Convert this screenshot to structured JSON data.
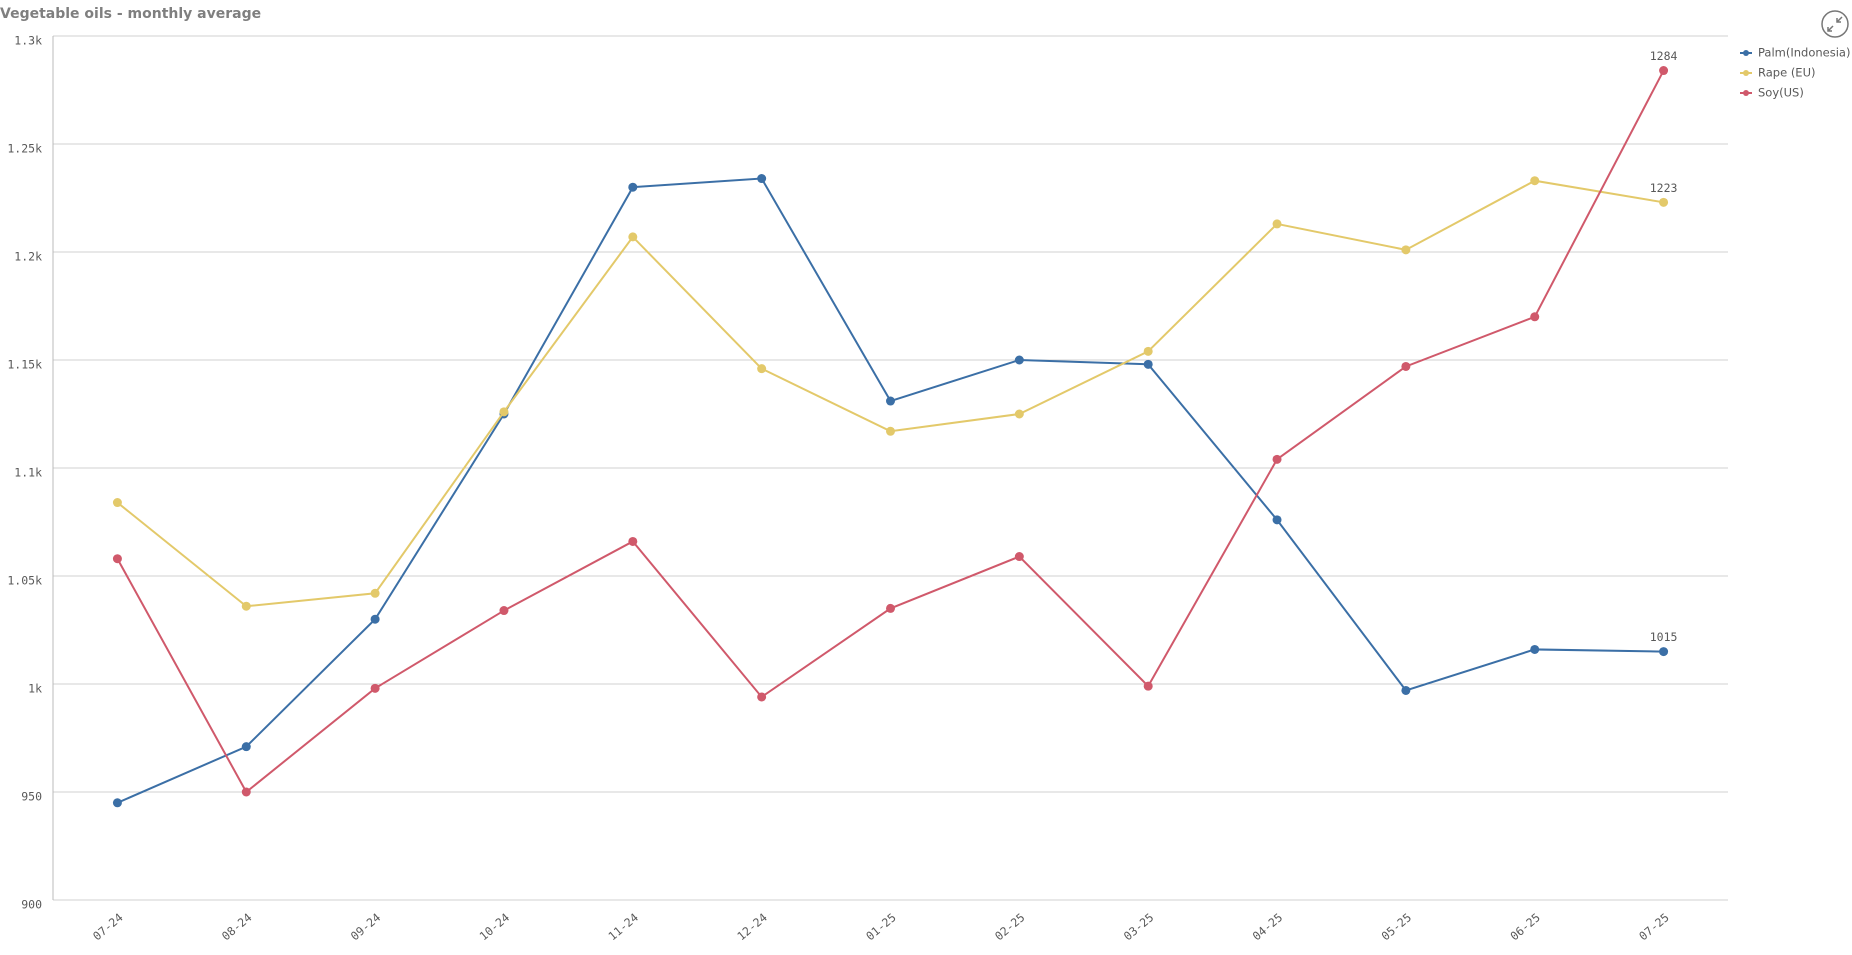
{
  "chart_data": {
    "type": "line",
    "title": "Vegetable oils - monthly average",
    "categories": [
      "07-24",
      "08-24",
      "09-24",
      "10-24",
      "11-24",
      "12-24",
      "01-25",
      "02-25",
      "03-25",
      "04-25",
      "05-25",
      "06-25",
      "07-25"
    ],
    "series": [
      {
        "name": "Palm(Indonesia)",
        "color": "#3b6fa6",
        "values": [
          945,
          971,
          1030,
          1125,
          1230,
          1234,
          1131,
          1150,
          1148,
          1076,
          997,
          1016,
          1015
        ]
      },
      {
        "name": "Rape (EU)",
        "color": "#e3c96a",
        "values": [
          1084,
          1036,
          1042,
          1126,
          1207,
          1146,
          1117,
          1125,
          1154,
          1213,
          1201,
          1233,
          1223
        ]
      },
      {
        "name": "Soy(US)",
        "color": "#d0596b",
        "values": [
          1058,
          950,
          998,
          1034,
          1066,
          994,
          1035,
          1059,
          999,
          1104,
          1147,
          1170,
          1284
        ]
      }
    ],
    "ylim": [
      900,
      1300
    ],
    "yticks": [
      900,
      950,
      {
        "value": 1000,
        "label": "1k"
      },
      {
        "value": 1050,
        "label": "1.05k"
      },
      {
        "value": 1100,
        "label": "1.1k"
      },
      {
        "value": 1150,
        "label": "1.15k"
      },
      {
        "value": 1200,
        "label": "1.2k"
      },
      {
        "value": 1250,
        "label": "1.25k"
      },
      {
        "value": 1300,
        "label": "1.3k"
      }
    ],
    "grid": true,
    "legend": "top-right",
    "data_labels": "last"
  }
}
